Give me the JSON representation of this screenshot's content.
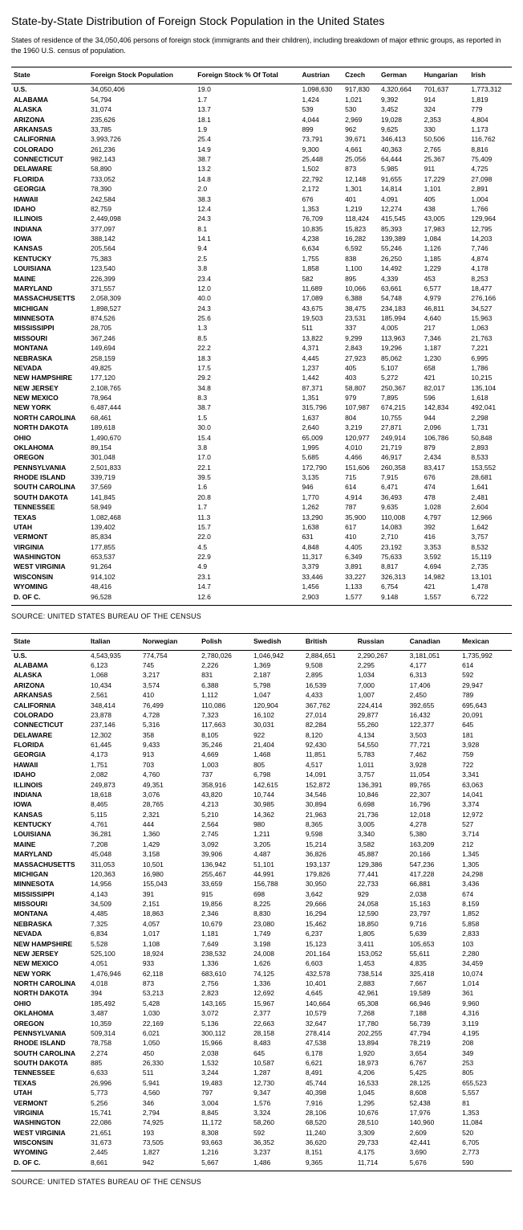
{
  "title": "State-by-State Distribution of Foreign Stock Population in the United States",
  "subtitle": "States of residence of the 34,050,406 persons of foreign stock (immigrants and their children), including breakdown of major ethnic groups, as reported in the 1960 U.S. census of population.",
  "source": "SOURCE: UNITED STATES BUREAU OF THE CENSUS",
  "table1": {
    "columns": [
      "State",
      "Foreign Stock Population",
      "Foreign Stock % Of Total",
      "Austrian",
      "Czech",
      "German",
      "Hungarian",
      "Irish"
    ]
  },
  "table2": {
    "columns": [
      "State",
      "Italian",
      "Norwegian",
      "Polish",
      "Swedish",
      "British",
      "Russian",
      "Canadian",
      "Mexican"
    ]
  },
  "states": [
    "U.S.",
    "ALABAMA",
    "ALASKA",
    "ARIZONA",
    "ARKANSAS",
    "CALIFORNIA",
    "COLORADO",
    "CONNECTICUT",
    "DELAWARE",
    "FLORIDA",
    "GEORGIA",
    "HAWAII",
    "IDAHO",
    "ILLINOIS",
    "INDIANA",
    "IOWA",
    "KANSAS",
    "KENTUCKY",
    "LOUISIANA",
    "MAINE",
    "MARYLAND",
    "MASSACHUSETTS",
    "MICHIGAN",
    "MINNESOTA",
    "MISSISSIPPI",
    "MISSOURI",
    "MONTANA",
    "NEBRASKA",
    "NEVADA",
    "NEW HAMPSHIRE",
    "NEW JERSEY",
    "NEW MEXICO",
    "NEW YORK",
    "NORTH CAROLINA",
    "NORTH DAKOTA",
    "OHIO",
    "OKLAHOMA",
    "OREGON",
    "PENNSYLVANIA",
    "RHODE ISLAND",
    "SOUTH CAROLINA",
    "SOUTH DAKOTA",
    "TENNESSEE",
    "TEXAS",
    "UTAH",
    "VERMONT",
    "VIRGINIA",
    "WASHINGTON",
    "WEST VIRGINIA",
    "WISCONSIN",
    "WYOMING",
    "D. OF C."
  ],
  "t1rows": [
    [
      "34,050,406",
      "19.0",
      "1,098,630",
      "917,830",
      "4,320,664",
      "701,637",
      "1,773,312"
    ],
    [
      "54,794",
      "1.7",
      "1,424",
      "1,021",
      "9,392",
      "914",
      "1,819"
    ],
    [
      "31,074",
      "13.7",
      "539",
      "530",
      "3,452",
      "324",
      "779"
    ],
    [
      "235,626",
      "18.1",
      "4,044",
      "2,969",
      "19,028",
      "2,353",
      "4,804"
    ],
    [
      "33,785",
      "1.9",
      "899",
      "962",
      "9,625",
      "330",
      "1,173"
    ],
    [
      "3,993,726",
      "25.4",
      "73,791",
      "39,671",
      "346,413",
      "50,506",
      "116,762"
    ],
    [
      "261,236",
      "14.9",
      "9,300",
      "4,661",
      "40,363",
      "2,765",
      "8,816"
    ],
    [
      "982,143",
      "38.7",
      "25,448",
      "25,056",
      "64,444",
      "25,367",
      "75,409"
    ],
    [
      "58,890",
      "13.2",
      "1,502",
      "873",
      "5,985",
      "911",
      "4,725"
    ],
    [
      "733,052",
      "14.8",
      "22,792",
      "12,148",
      "91,655",
      "17,229",
      "27,098"
    ],
    [
      "78,390",
      "2.0",
      "2,172",
      "1,301",
      "14,814",
      "1,101",
      "2,891"
    ],
    [
      "242,584",
      "38.3",
      "676",
      "401",
      "4,091",
      "405",
      "1,004"
    ],
    [
      "82,759",
      "12.4",
      "1,353",
      "1,219",
      "12,274",
      "438",
      "1,766"
    ],
    [
      "2,449,098",
      "24.3",
      "76,709",
      "118,424",
      "415,545",
      "43,005",
      "129,964"
    ],
    [
      "377,097",
      "8.1",
      "10,835",
      "15,823",
      "85,393",
      "17,983",
      "12,795"
    ],
    [
      "388,142",
      "14.1",
      "4,238",
      "16,282",
      "139,389",
      "1,084",
      "14,203"
    ],
    [
      "205,564",
      "9.4",
      "6,634",
      "6,592",
      "55,246",
      "1,126",
      "7,746"
    ],
    [
      "75,383",
      "2.5",
      "1,755",
      "838",
      "26,250",
      "1,185",
      "4,874"
    ],
    [
      "123,540",
      "3.8",
      "1,858",
      "1,100",
      "14,492",
      "1,229",
      "4,178"
    ],
    [
      "226,399",
      "23.4",
      "582",
      "895",
      "4,339",
      "453",
      "8,253"
    ],
    [
      "371,557",
      "12.0",
      "11,689",
      "10,066",
      "63,661",
      "6,577",
      "18,477"
    ],
    [
      "2,058,309",
      "40.0",
      "17,089",
      "6,388",
      "54,748",
      "4,979",
      "276,166"
    ],
    [
      "1,898,527",
      "24.3",
      "43,675",
      "38,475",
      "234,183",
      "46,811",
      "34,527"
    ],
    [
      "874,526",
      "25.6",
      "19,503",
      "23,531",
      "185,994",
      "4,640",
      "15,963"
    ],
    [
      "28,705",
      "1.3",
      "511",
      "337",
      "4,005",
      "217",
      "1,063"
    ],
    [
      "367,246",
      "8.5",
      "13,822",
      "9,299",
      "113,963",
      "7,346",
      "21,763"
    ],
    [
      "149,694",
      "22.2",
      "4,371",
      "2,843",
      "19,296",
      "1,187",
      "7,221"
    ],
    [
      "258,159",
      "18.3",
      "4,445",
      "27,923",
      "85,062",
      "1,230",
      "6,995"
    ],
    [
      "49,825",
      "17.5",
      "1,237",
      "405",
      "5,107",
      "658",
      "1,786"
    ],
    [
      "177,120",
      "29.2",
      "1,442",
      "403",
      "5,272",
      "421",
      "10,215"
    ],
    [
      "2,108,765",
      "34.8",
      "87,371",
      "58,807",
      "250,367",
      "82,017",
      "135,104"
    ],
    [
      "78,964",
      "8.3",
      "1,351",
      "979",
      "7,895",
      "596",
      "1,618"
    ],
    [
      "6,487,444",
      "38.7",
      "315,796",
      "107,987",
      "674,215",
      "142,834",
      "492,041"
    ],
    [
      "68,461",
      "1.5",
      "1,637",
      "804",
      "10,755",
      "944",
      "2,298"
    ],
    [
      "189,618",
      "30.0",
      "2,640",
      "3,219",
      "27,871",
      "2,096",
      "1,731"
    ],
    [
      "1,490,670",
      "15.4",
      "65,009",
      "120,977",
      "249,914",
      "106,786",
      "50,848"
    ],
    [
      "89,154",
      "3.8",
      "1,995",
      "4,010",
      "21,719",
      "879",
      "2,893"
    ],
    [
      "301,048",
      "17.0",
      "5,685",
      "4,466",
      "46,917",
      "2,434",
      "8,533"
    ],
    [
      "2,501,833",
      "22.1",
      "172,790",
      "151,606",
      "260,358",
      "83,417",
      "153,552"
    ],
    [
      "339,719",
      "39.5",
      "3,135",
      "715",
      "7,915",
      "676",
      "28,681"
    ],
    [
      "37,569",
      "1.6",
      "946",
      "614",
      "6,471",
      "474",
      "1,641"
    ],
    [
      "141,845",
      "20.8",
      "1,770",
      "4,914",
      "36,493",
      "478",
      "2,481"
    ],
    [
      "58,949",
      "1.7",
      "1,262",
      "787",
      "9,635",
      "1,028",
      "2,604"
    ],
    [
      "1,082,468",
      "11.3",
      "13,290",
      "35,900",
      "110,008",
      "4,797",
      "12,966"
    ],
    [
      "139,402",
      "15.7",
      "1,638",
      "617",
      "14,083",
      "392",
      "1,642"
    ],
    [
      "85,834",
      "22.0",
      "631",
      "410",
      "2,710",
      "416",
      "3,757"
    ],
    [
      "177,855",
      "4.5",
      "4,848",
      "4,405",
      "23,192",
      "3,353",
      "8,532"
    ],
    [
      "653,537",
      "22.9",
      "11,317",
      "6,349",
      "75,633",
      "3,592",
      "15,119"
    ],
    [
      "91,264",
      "4.9",
      "3,379",
      "3,891",
      "8,817",
      "4,694",
      "2,735"
    ],
    [
      "914,102",
      "23.1",
      "33,446",
      "33,227",
      "326,313",
      "14,982",
      "13,101"
    ],
    [
      "48,416",
      "14.7",
      "1,456",
      "1,133",
      "6,754",
      "421",
      "1,478"
    ],
    [
      "96,528",
      "12.6",
      "2,903",
      "1,577",
      "9,148",
      "1,557",
      "6,722"
    ]
  ],
  "t2rows": [
    [
      "4,543,935",
      "774,754",
      "2,780,026",
      "1,046,942",
      "2,884,651",
      "2,290,267",
      "3,181,051",
      "1,735,992"
    ],
    [
      "6,123",
      "745",
      "2,226",
      "1,369",
      "9,508",
      "2,295",
      "4,177",
      "614"
    ],
    [
      "1,068",
      "3,217",
      "831",
      "2,187",
      "2,895",
      "1,034",
      "6,313",
      "592"
    ],
    [
      "10,434",
      "3,574",
      "6,388",
      "5,798",
      "16,539",
      "7,000",
      "17,406",
      "29,947"
    ],
    [
      "2,561",
      "410",
      "1,112",
      "1,047",
      "4,433",
      "1,007",
      "2,450",
      "789"
    ],
    [
      "348,414",
      "76,499",
      "110,086",
      "120,904",
      "367,762",
      "224,414",
      "392,655",
      "695,643"
    ],
    [
      "23,878",
      "4,728",
      "7,323",
      "16,102",
      "27,014",
      "29,877",
      "16,432",
      "20,091"
    ],
    [
      "237,146",
      "5,316",
      "117,663",
      "30,031",
      "82,284",
      "55,260",
      "122,377",
      "645"
    ],
    [
      "12,302",
      "358",
      "8,105",
      "922",
      "8,120",
      "4,134",
      "3,503",
      "181"
    ],
    [
      "61,445",
      "9,433",
      "35,246",
      "21,404",
      "92,430",
      "54,550",
      "77,721",
      "3,928"
    ],
    [
      "4,173",
      "913",
      "4,669",
      "1,468",
      "11,851",
      "5,783",
      "7,462",
      "759"
    ],
    [
      "1,751",
      "703",
      "1,003",
      "805",
      "4,517",
      "1,011",
      "3,928",
      "722"
    ],
    [
      "2,082",
      "4,760",
      "737",
      "6,798",
      "14,091",
      "3,757",
      "11,054",
      "3,341"
    ],
    [
      "249,873",
      "49,351",
      "358,916",
      "142,615",
      "152,872",
      "136,391",
      "89,765",
      "63,063"
    ],
    [
      "18,618",
      "3,076",
      "43,820",
      "10,744",
      "34,546",
      "10,846",
      "22,307",
      "14,041"
    ],
    [
      "8,465",
      "28,765",
      "4,213",
      "30,985",
      "30,894",
      "6,698",
      "16,796",
      "3,374"
    ],
    [
      "5,115",
      "2,321",
      "5,210",
      "14,362",
      "21,963",
      "21,736",
      "12,018",
      "12,972"
    ],
    [
      "4,761",
      "444",
      "2,564",
      "980",
      "8,365",
      "3,005",
      "4,278",
      "527"
    ],
    [
      "36,281",
      "1,360",
      "2,745",
      "1,211",
      "9,598",
      "3,340",
      "5,380",
      "3,714"
    ],
    [
      "7,208",
      "1,429",
      "3,092",
      "3,205",
      "15,214",
      "3,582",
      "163,209",
      "212"
    ],
    [
      "45,048",
      "3,158",
      "39,906",
      "4,487",
      "36,826",
      "45,887",
      "20,166",
      "1,345"
    ],
    [
      "311,053",
      "10,501",
      "136,942",
      "51,101",
      "193,137",
      "129,386",
      "547,236",
      "1,305"
    ],
    [
      "120,363",
      "16,980",
      "255,467",
      "44,991",
      "179,826",
      "77,441",
      "417,228",
      "24,298"
    ],
    [
      "14,956",
      "155,043",
      "33,659",
      "156,788",
      "30,950",
      "22,733",
      "66,881",
      "3,436"
    ],
    [
      "4,143",
      "391",
      "915",
      "698",
      "3,642",
      "929",
      "2,038",
      "674"
    ],
    [
      "34,509",
      "2,151",
      "19,856",
      "8,225",
      "29,666",
      "24,058",
      "15,163",
      "8,159"
    ],
    [
      "4,485",
      "18,863",
      "2,346",
      "8,830",
      "16,294",
      "12,590",
      "23,797",
      "1,852"
    ],
    [
      "7,325",
      "4,057",
      "10,679",
      "23,080",
      "15,462",
      "18,850",
      "9,716",
      "5,858"
    ],
    [
      "6,834",
      "1,017",
      "1,181",
      "1,749",
      "6,237",
      "1,805",
      "5,639",
      "2,833"
    ],
    [
      "5,528",
      "1,108",
      "7,649",
      "3,198",
      "15,123",
      "3,411",
      "105,653",
      "103"
    ],
    [
      "525,100",
      "18,924",
      "238,532",
      "24,008",
      "201,164",
      "153,052",
      "55,611",
      "2,280"
    ],
    [
      "4,051",
      "933",
      "1,336",
      "1,626",
      "6,603",
      "1,453",
      "4,835",
      "34,459"
    ],
    [
      "1,476,946",
      "62,118",
      "683,610",
      "74,125",
      "432,578",
      "738,514",
      "325,418",
      "10,074"
    ],
    [
      "4,018",
      "873",
      "2,756",
      "1,336",
      "10,401",
      "2,883",
      "7,667",
      "1,014"
    ],
    [
      "394",
      "53,213",
      "2,823",
      "12,692",
      "4,645",
      "42,961",
      "19,589",
      "361"
    ],
    [
      "185,492",
      "5,428",
      "143,165",
      "15,967",
      "140,664",
      "65,308",
      "66,946",
      "9,960"
    ],
    [
      "3,487",
      "1,030",
      "3,072",
      "2,377",
      "10,579",
      "7,268",
      "7,188",
      "4,316"
    ],
    [
      "10,359",
      "22,169",
      "5,136",
      "22,663",
      "32,647",
      "17,780",
      "56,739",
      "3,119"
    ],
    [
      "509,314",
      "6,021",
      "300,112",
      "28,158",
      "278,414",
      "202,255",
      "47,794",
      "4,195"
    ],
    [
      "78,758",
      "1,050",
      "15,966",
      "8,483",
      "47,538",
      "13,894",
      "78,219",
      "208"
    ],
    [
      "2,274",
      "450",
      "2,038",
      "645",
      "6,178",
      "1,920",
      "3,654",
      "349"
    ],
    [
      "885",
      "26,330",
      "1,532",
      "10,587",
      "6,621",
      "18,973",
      "6,767",
      "253"
    ],
    [
      "6,633",
      "511",
      "3,244",
      "1,287",
      "8,491",
      "4,206",
      "5,425",
      "805"
    ],
    [
      "26,996",
      "5,941",
      "19,483",
      "12,730",
      "45,744",
      "16,533",
      "28,125",
      "655,523"
    ],
    [
      "5,773",
      "4,560",
      "797",
      "9,347",
      "40,398",
      "1,045",
      "8,608",
      "5,557"
    ],
    [
      "5,256",
      "346",
      "3,004",
      "1,576",
      "7,916",
      "1,295",
      "52,438",
      "81"
    ],
    [
      "15,741",
      "2,794",
      "8,845",
      "3,324",
      "28,106",
      "10,676",
      "17,976",
      "1,353"
    ],
    [
      "22,086",
      "74,925",
      "11,172",
      "58,260",
      "68,520",
      "28,510",
      "140,960",
      "11,084"
    ],
    [
      "21,651",
      "193",
      "8,308",
      "592",
      "11,240",
      "3,309",
      "2,609",
      "520"
    ],
    [
      "31,673",
      "73,505",
      "93,663",
      "36,352",
      "36,620",
      "29,733",
      "42,441",
      "6,705"
    ],
    [
      "2,445",
      "1,827",
      "1,216",
      "3,237",
      "8,151",
      "4,175",
      "3,690",
      "2,773"
    ],
    [
      "8,661",
      "942",
      "5,667",
      "1,486",
      "9,365",
      "11,714",
      "5,676",
      "590"
    ]
  ]
}
